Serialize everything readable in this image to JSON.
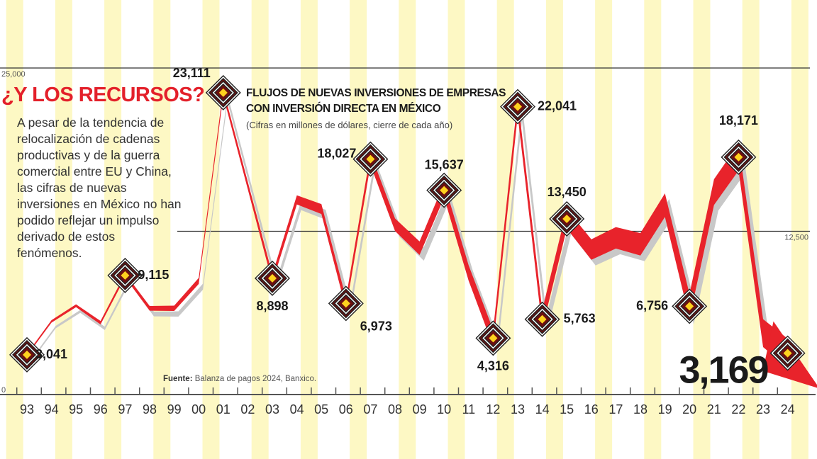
{
  "headline": "¿Y LOS RECURSOS?",
  "body_text": "A pesar de la tendencia de relocalización de cadenas productivas y de la guerra comercial entre EU y China, las cifras de nuevas inversiones en México no han podido reflejar un impulso derivado de estos fenómenos.",
  "source_label": "Fuente:",
  "source_text": "Balanza de pagos 2024, Banxico.",
  "colors": {
    "line": "#e8232b",
    "stripe": "#fdf8c4",
    "marker_fill": "#ffd21f",
    "shadow": "#c8c8c8"
  },
  "chart_data": {
    "type": "line",
    "title": "FLUJOS DE NUEVAS INVERSIONES DE EMPRESAS CON INVERSIÓN DIRECTA EN MÉXICO",
    "subtitle": "(Cifras en millones de dólares, cierre de cada año)",
    "x": [
      "93",
      "94",
      "95",
      "96",
      "97",
      "98",
      "99",
      "00",
      "01",
      "02",
      "03",
      "04",
      "05",
      "06",
      "07",
      "08",
      "09",
      "10",
      "11",
      "12",
      "13",
      "14",
      "15",
      "16",
      "17",
      "18",
      "19",
      "20",
      "21",
      "22",
      "23",
      "24"
    ],
    "values": [
      3041,
      5600,
      6800,
      5500,
      9115,
      6600,
      6600,
      8700,
      23111,
      16000,
      8898,
      14900,
      14200,
      6973,
      18027,
      13000,
      11200,
      15637,
      9300,
      4316,
      22041,
      5763,
      13450,
      11100,
      12000,
      11500,
      14500,
      6756,
      15500,
      18171,
      4700,
      3169
    ],
    "labels": [
      {
        "year": "93",
        "text": "3,041"
      },
      {
        "year": "97",
        "text": "9,115"
      },
      {
        "year": "01",
        "text": "23,111"
      },
      {
        "year": "03",
        "text": "8,898"
      },
      {
        "year": "06",
        "text": "6,973"
      },
      {
        "year": "07",
        "text": "18,027"
      },
      {
        "year": "10",
        "text": "15,637"
      },
      {
        "year": "12",
        "text": "4,316"
      },
      {
        "year": "13",
        "text": "22,041"
      },
      {
        "year": "14",
        "text": "5,763"
      },
      {
        "year": "15",
        "text": "13,450"
      },
      {
        "year": "20",
        "text": "6,756"
      },
      {
        "year": "22",
        "text": "18,171"
      },
      {
        "year": "24",
        "text": "3,169"
      }
    ],
    "y_ticks": [
      {
        "value": 0,
        "label": "0"
      },
      {
        "value": 12500,
        "label": "12,500"
      },
      {
        "value": 25000,
        "label": "25,000"
      }
    ],
    "ylim": [
      0,
      25000
    ],
    "grid": "horizontal at 12,500 and 25,000",
    "legend": "none"
  }
}
